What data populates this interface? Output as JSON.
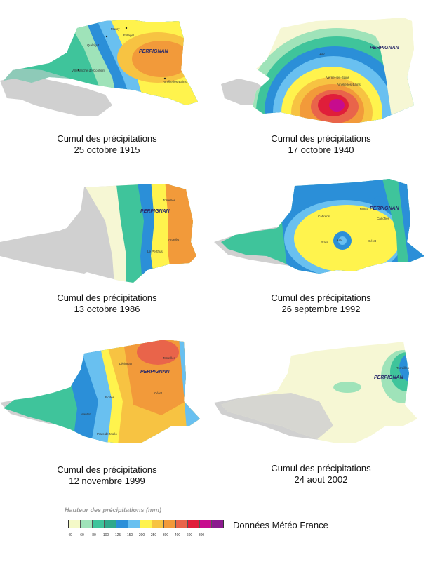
{
  "maps": [
    {
      "date_line1": "Cumul des précipitations",
      "date_line2": "25 octobre 1915",
      "city": "PERPIGNAN"
    },
    {
      "date_line1": "Cumul des précipitations",
      "date_line2": "17 octobre 1940",
      "city": "PERPIGNAN"
    },
    {
      "date_line1": "Cumul des précipitations",
      "date_line2": "13 octobre 1986",
      "city": "PERPIGNAN"
    },
    {
      "date_line1": "Cumul des précipitations",
      "date_line2": "26 septembre 1992",
      "city": "PERPIGNAN"
    },
    {
      "date_line1": "Cumul des précipitations",
      "date_line2": "12 novembre 1999",
      "city": "PERPIGNAN"
    },
    {
      "date_line1": "Cumul des précipitations",
      "date_line2": "24 aout 2002",
      "city": "PERPIGNAN"
    }
  ],
  "legend": {
    "title": "Hauteur des précipitations (mm)",
    "source": "Données Météo France",
    "ticks": [
      "40",
      "60",
      "80",
      "100",
      "125",
      "150",
      "200",
      "250",
      "300",
      "400",
      "600",
      "800"
    ],
    "colors": [
      "#f4f9c8",
      "#9fe3b9",
      "#3fc49b",
      "#2fa98c",
      "#2b8fd8",
      "#69c0f0",
      "#fff34d",
      "#f7c342",
      "#f29a3a",
      "#e9644a",
      "#e01e3a",
      "#c70c8e",
      "#8b1a8e"
    ]
  },
  "colors": {
    "outside": "#d0d0d0",
    "light_yellow": "#f6f7d4",
    "teal": "#3fc49b",
    "green": "#9fe3b9",
    "blue": "#2b8fd8",
    "yellow": "#fff34d",
    "orange": "#f29a3a",
    "red": "#e01e3a",
    "magenta": "#c70c8e"
  }
}
